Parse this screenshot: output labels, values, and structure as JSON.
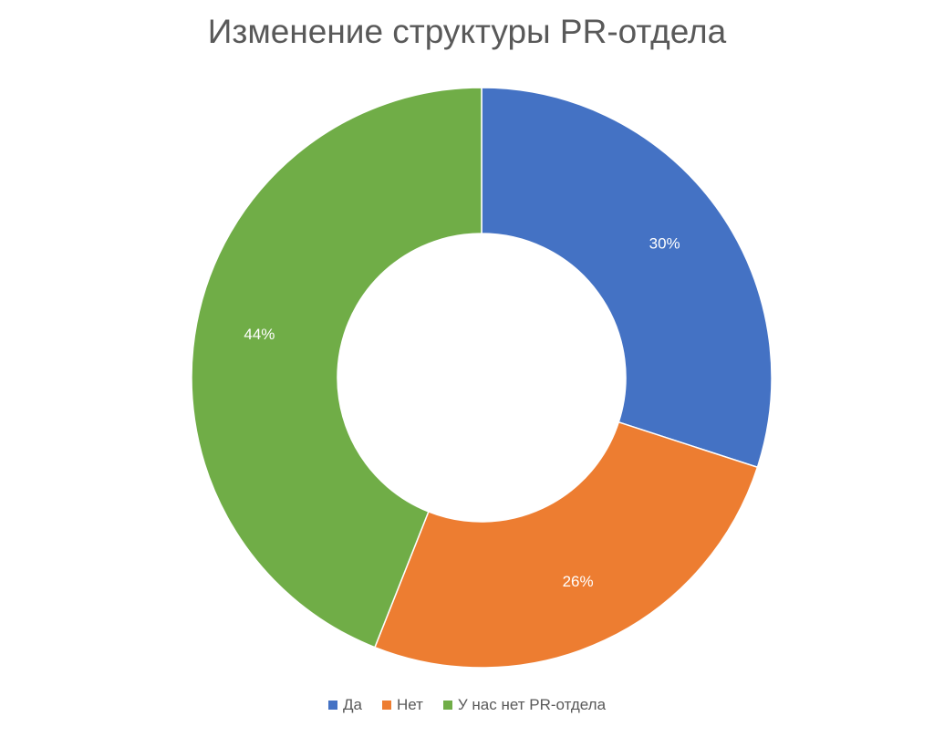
{
  "chart_data": {
    "type": "pie",
    "variant": "donut",
    "title": "Изменение структуры PR-отдела",
    "categories": [
      "Да",
      "Нет",
      "У нас нет PR-отдела"
    ],
    "values": [
      30,
      26,
      44
    ],
    "labels": [
      "30%",
      "26%",
      "44%"
    ],
    "colors": [
      "#4472C4",
      "#ED7D31",
      "#70AD47"
    ],
    "legend_position": "bottom"
  }
}
